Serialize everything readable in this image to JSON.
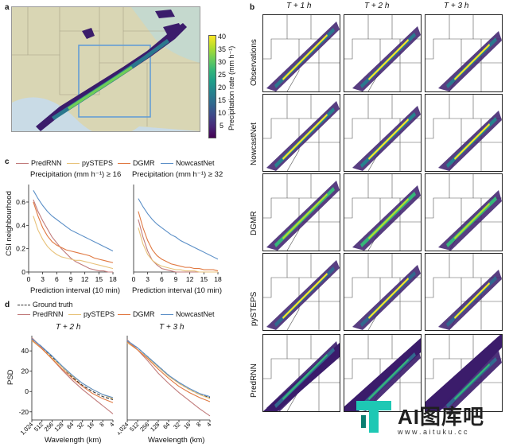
{
  "panels": {
    "a": "a",
    "b": "b",
    "c": "c",
    "d": "d"
  },
  "panel_a": {
    "colorbar_label": "Precipitation rate (mm h⁻¹)",
    "colorbar_ticks": [
      "40",
      "35",
      "30",
      "25",
      "20",
      "15",
      "10",
      "5"
    ],
    "colors": [
      "#fde725",
      "#b5de2b",
      "#6ece58",
      "#35b779",
      "#1f9e89",
      "#26828e",
      "#31688e",
      "#3e4989",
      "#482878",
      "#440154"
    ]
  },
  "panel_b": {
    "columns": [
      "T + 1 h",
      "T + 2 h",
      "T + 3 h"
    ],
    "rows": [
      "Observations",
      "NowcastNet",
      "DGMR",
      "pySTEPS",
      "PredRNN"
    ]
  },
  "panel_c": {
    "legend": [
      {
        "name": "PredRNN",
        "color": "#c07a7a"
      },
      {
        "name": "pySTEPS",
        "color": "#e8c27a"
      },
      {
        "name": "DGMR",
        "color": "#e07840"
      },
      {
        "name": "NowcastNet",
        "color": "#5b8fc7"
      }
    ],
    "left_title": "Precipitation (mm h⁻¹) ≥ 16",
    "right_title": "Precipitation (mm h⁻¹) ≥ 32",
    "ylabel": "CSI neighbourhood",
    "xlabel": "Prediction interval (10 min)"
  },
  "panel_d": {
    "legend": [
      {
        "name": "Ground truth",
        "color": "#333333",
        "dash": true
      },
      {
        "name": "PredRNN",
        "color": "#c07a7a"
      },
      {
        "name": "pySTEPS",
        "color": "#e8c27a"
      },
      {
        "name": "DGMR",
        "color": "#e07840"
      },
      {
        "name": "NowcastNet",
        "color": "#5b8fc7"
      }
    ],
    "left_title": "T + 2 h",
    "right_title": "T + 3 h",
    "ylabel": "PSD",
    "xlabel": "Wavelength (km)"
  },
  "watermark": {
    "brand": "AI图库吧",
    "url": "w w w . a i t u k u . c c"
  },
  "chart_data": [
    {
      "type": "line",
      "title": "Precipitation (mm h⁻¹) ≥ 16",
      "xlabel": "Prediction interval (10 min)",
      "ylabel": "CSI neighbourhood",
      "x_ticks": [
        0,
        3,
        6,
        9,
        12,
        15,
        18
      ],
      "y_ticks": [
        0,
        0.2,
        0.4,
        0.6
      ],
      "xlim": [
        0,
        18
      ],
      "ylim": [
        0,
        0.75
      ],
      "series": [
        {
          "name": "PredRNN",
          "x": [
            1,
            2,
            3,
            4,
            5,
            6,
            7,
            8,
            9,
            10,
            11,
            12,
            13,
            14,
            15,
            16,
            17,
            18
          ],
          "values": [
            0.62,
            0.52,
            0.44,
            0.37,
            0.3,
            0.25,
            0.2,
            0.16,
            0.12,
            0.09,
            0.07,
            0.05,
            0.03,
            0.02,
            0.01,
            0.01,
            0.0,
            0.0
          ]
        },
        {
          "name": "pySTEPS",
          "x": [
            1,
            2,
            3,
            4,
            5,
            6,
            7,
            8,
            9,
            10,
            11,
            12,
            13,
            14,
            15,
            16,
            17,
            18
          ],
          "values": [
            0.48,
            0.36,
            0.28,
            0.22,
            0.18,
            0.15,
            0.13,
            0.12,
            0.11,
            0.1,
            0.1,
            0.09,
            0.08,
            0.07,
            0.06,
            0.05,
            0.04,
            0.03
          ]
        },
        {
          "name": "DGMR",
          "x": [
            1,
            2,
            3,
            4,
            5,
            6,
            7,
            8,
            9,
            10,
            11,
            12,
            13,
            14,
            15,
            16,
            17,
            18
          ],
          "values": [
            0.6,
            0.48,
            0.38,
            0.31,
            0.26,
            0.23,
            0.21,
            0.19,
            0.18,
            0.17,
            0.16,
            0.15,
            0.14,
            0.12,
            0.11,
            0.1,
            0.09,
            0.08
          ]
        },
        {
          "name": "NowcastNet",
          "x": [
            1,
            2,
            3,
            4,
            5,
            6,
            7,
            8,
            9,
            10,
            11,
            12,
            13,
            14,
            15,
            16,
            17,
            18
          ],
          "values": [
            0.7,
            0.63,
            0.57,
            0.52,
            0.48,
            0.45,
            0.42,
            0.39,
            0.36,
            0.34,
            0.32,
            0.3,
            0.28,
            0.26,
            0.24,
            0.22,
            0.2,
            0.18
          ]
        }
      ]
    },
    {
      "type": "line",
      "title": "Precipitation (mm h⁻¹) ≥ 32",
      "xlabel": "Prediction interval (10 min)",
      "x_ticks": [
        0,
        3,
        6,
        9,
        12,
        15,
        18
      ],
      "xlim": [
        0,
        18
      ],
      "ylim": [
        0,
        0.75
      ],
      "series": [
        {
          "name": "PredRNN",
          "x": [
            1,
            2,
            3,
            4,
            5,
            6,
            7,
            8,
            9,
            10,
            11,
            12,
            13,
            14,
            15,
            16,
            17,
            18
          ],
          "values": [
            0.45,
            0.3,
            0.18,
            0.1,
            0.06,
            0.03,
            0.02,
            0.01,
            0.0,
            0.0,
            0.0,
            0.0,
            0.0,
            0.0,
            0.0,
            0.0,
            0.0,
            0.0
          ]
        },
        {
          "name": "pySTEPS",
          "x": [
            1,
            2,
            3,
            4,
            5,
            6,
            7,
            8,
            9,
            10,
            11,
            12,
            13,
            14,
            15,
            16,
            17,
            18
          ],
          "values": [
            0.38,
            0.24,
            0.15,
            0.1,
            0.07,
            0.05,
            0.04,
            0.03,
            0.02,
            0.02,
            0.01,
            0.01,
            0.01,
            0.0,
            0.0,
            0.0,
            0.0,
            0.0
          ]
        },
        {
          "name": "DGMR",
          "x": [
            1,
            2,
            3,
            4,
            5,
            6,
            7,
            8,
            9,
            10,
            11,
            12,
            13,
            14,
            15,
            16,
            17,
            18
          ],
          "values": [
            0.52,
            0.38,
            0.27,
            0.19,
            0.14,
            0.11,
            0.09,
            0.07,
            0.06,
            0.05,
            0.04,
            0.04,
            0.03,
            0.03,
            0.02,
            0.02,
            0.02,
            0.01
          ]
        },
        {
          "name": "NowcastNet",
          "x": [
            1,
            2,
            3,
            4,
            5,
            6,
            7,
            8,
            9,
            10,
            11,
            12,
            13,
            14,
            15,
            16,
            17,
            18
          ],
          "values": [
            0.63,
            0.56,
            0.5,
            0.45,
            0.41,
            0.38,
            0.35,
            0.32,
            0.3,
            0.27,
            0.25,
            0.23,
            0.21,
            0.19,
            0.17,
            0.15,
            0.13,
            0.11
          ]
        }
      ]
    },
    {
      "type": "line",
      "title": "T + 2 h",
      "xlabel": "Wavelength (km)",
      "ylabel": "PSD",
      "x_ticks": [
        "1,024",
        "512",
        "256",
        "128",
        "64",
        "32",
        "16",
        "8",
        "4"
      ],
      "y_ticks": [
        -20,
        0,
        20,
        40
      ],
      "ylim": [
        -28,
        55
      ],
      "series": [
        {
          "name": "Ground truth",
          "values": [
            52,
            44,
            34,
            24,
            14,
            6,
            0,
            -5,
            -8
          ]
        },
        {
          "name": "PredRNN",
          "values": [
            53,
            43,
            32,
            21,
            11,
            2,
            -6,
            -14,
            -22
          ]
        },
        {
          "name": "pySTEPS",
          "values": [
            50,
            42,
            33,
            24,
            15,
            8,
            2,
            -3,
            -7
          ]
        },
        {
          "name": "DGMR",
          "values": [
            51,
            42,
            32,
            22,
            13,
            5,
            -2,
            -7,
            -11
          ]
        },
        {
          "name": "NowcastNet",
          "values": [
            52,
            44,
            35,
            25,
            16,
            8,
            2,
            -3,
            -6
          ]
        }
      ]
    },
    {
      "type": "line",
      "title": "T + 3 h",
      "xlabel": "Wavelength (km)",
      "x_ticks": [
        "1,024",
        "512",
        "256",
        "128",
        "64",
        "32",
        "16",
        "8",
        "4"
      ],
      "ylim": [
        -28,
        55
      ],
      "series": [
        {
          "name": "Ground truth",
          "values": [
            50,
            43,
            34,
            25,
            16,
            8,
            2,
            -3,
            -6
          ]
        },
        {
          "name": "PredRNN",
          "values": [
            51,
            41,
            30,
            18,
            8,
            -1,
            -9,
            -17,
            -24
          ]
        },
        {
          "name": "pySTEPS",
          "values": [
            48,
            41,
            33,
            24,
            15,
            8,
            2,
            -3,
            -7
          ]
        },
        {
          "name": "DGMR",
          "values": [
            49,
            41,
            32,
            22,
            13,
            5,
            -1,
            -6,
            -10
          ]
        },
        {
          "name": "NowcastNet",
          "values": [
            50,
            43,
            34,
            25,
            16,
            9,
            3,
            -2,
            -5
          ]
        }
      ]
    }
  ]
}
